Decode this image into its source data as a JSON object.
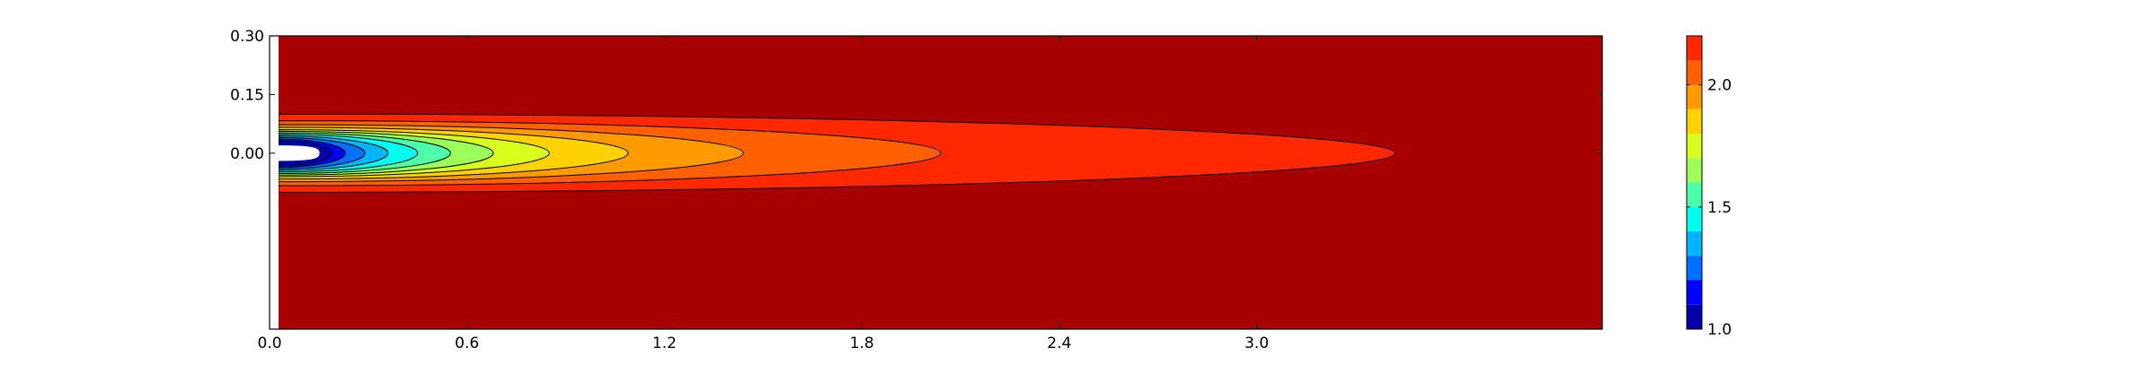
{
  "chart_data": {
    "type": "contour",
    "title": "",
    "xlabel": "",
    "ylabel": "",
    "xlim": [
      0.0,
      4.05
    ],
    "ylim": [
      -0.45,
      0.3
    ],
    "x_ticks": [
      {
        "value": 0.0,
        "label": "0.0"
      },
      {
        "value": 0.6,
        "label": "0.6"
      },
      {
        "value": 1.2,
        "label": "1.2"
      },
      {
        "value": 1.8,
        "label": "1.8"
      },
      {
        "value": 2.4,
        "label": "2.4"
      },
      {
        "value": 3.0,
        "label": "3.0"
      }
    ],
    "y_ticks": [
      {
        "value": 0.3,
        "label": "0.30"
      },
      {
        "value": 0.15,
        "label": "0.15"
      },
      {
        "value": 0.0,
        "label": "0.00"
      }
    ],
    "levels": [
      1.0,
      1.1,
      1.2,
      1.3,
      1.4,
      1.5,
      1.6,
      1.7,
      1.8,
      1.9,
      2.0,
      2.1,
      2.2
    ],
    "level_colors": [
      "#0000a8",
      "#0000ff",
      "#0070ff",
      "#00b4ff",
      "#00ffee",
      "#4dffa8",
      "#9cff5a",
      "#d9ff1f",
      "#ffd200",
      "#ff9a00",
      "#ff6000",
      "#ff2800",
      "#a80000"
    ],
    "contours": [
      {
        "level": 2.1,
        "tip_x": 3.42,
        "halfwidth": 0.1
      },
      {
        "level": 2.0,
        "tip_x": 2.04,
        "halfwidth": 0.083
      },
      {
        "level": 1.9,
        "tip_x": 1.44,
        "halfwidth": 0.073
      },
      {
        "level": 1.8,
        "tip_x": 1.09,
        "halfwidth": 0.066
      },
      {
        "level": 1.7,
        "tip_x": 0.85,
        "halfwidth": 0.06
      },
      {
        "level": 1.6,
        "tip_x": 0.68,
        "halfwidth": 0.056
      },
      {
        "level": 1.5,
        "tip_x": 0.55,
        "halfwidth": 0.052
      },
      {
        "level": 1.4,
        "tip_x": 0.45,
        "halfwidth": 0.048
      },
      {
        "level": 1.3,
        "tip_x": 0.36,
        "halfwidth": 0.044
      },
      {
        "level": 1.2,
        "tip_x": 0.29,
        "halfwidth": 0.04
      },
      {
        "level": 1.1,
        "tip_x": 0.23,
        "halfwidth": 0.036
      },
      {
        "level": 1.0,
        "tip_x": 0.19,
        "halfwidth": 0.032
      }
    ],
    "colorbar": {
      "min": 1.0,
      "max": 2.2,
      "ticks": [
        {
          "value": 2.0,
          "label": "2.0"
        },
        {
          "value": 1.5,
          "label": "1.5"
        },
        {
          "value": 1.0,
          "label": "1.0"
        }
      ]
    },
    "grid": false,
    "legend": "none"
  }
}
